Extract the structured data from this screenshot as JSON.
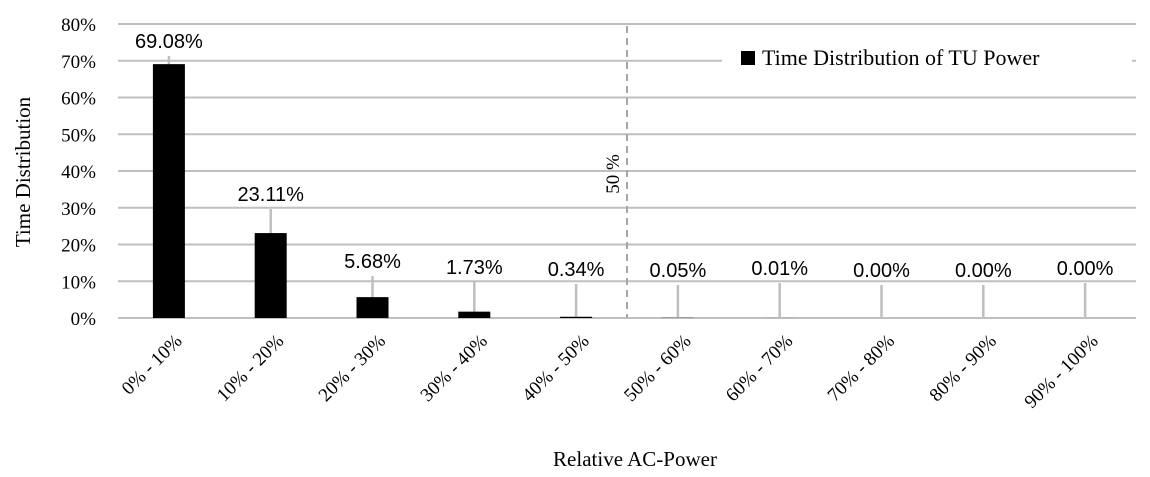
{
  "chart_data": {
    "type": "bar",
    "title": "",
    "xlabel": "Relative AC-Power",
    "ylabel": "Time Distribution",
    "ylim": [
      0,
      80
    ],
    "yticks": [
      0,
      10,
      20,
      30,
      40,
      50,
      60,
      70,
      80
    ],
    "ytick_labels": [
      "0%",
      "10%",
      "20%",
      "30%",
      "40%",
      "50%",
      "60%",
      "70%",
      "80%"
    ],
    "categories": [
      "0% - 10%",
      "10% - 20%",
      "20% - 30%",
      "30% - 40%",
      "40% - 50%",
      "50% - 60%",
      "60% - 70%",
      "70% - 80%",
      "80% - 90%",
      "90% - 100%"
    ],
    "series": [
      {
        "name": "Time Distribution of TU Power",
        "values": [
          69.08,
          23.11,
          5.68,
          1.73,
          0.34,
          0.05,
          0.01,
          0.0,
          0.0,
          0.0
        ],
        "labels": [
          "69.08%",
          "23.11%",
          "5.68%",
          "1.73%",
          "0.34%",
          "0.05%",
          "0.01%",
          "0.00%",
          "0.00%",
          "0.00%"
        ]
      }
    ],
    "annotation": {
      "text": "50 %",
      "line_style": "dashed",
      "position": "between 40% - 50% and 50% - 60%"
    },
    "grid": true,
    "legend_position": "top-right",
    "colors": {
      "bar": "#000000",
      "grid": "#bfbfbf",
      "leader": "#bfbfbf",
      "annotation_line": "#a6a6a6"
    }
  }
}
